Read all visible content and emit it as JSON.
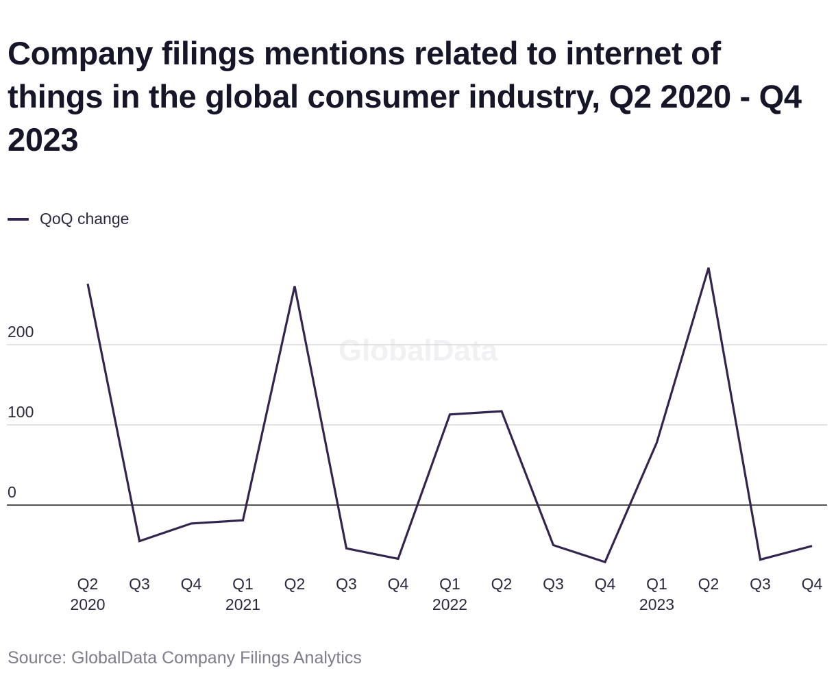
{
  "title": "Company filings mentions related to internet of things in the global consumer industry, Q2 2020 - Q4 2023",
  "legend": {
    "label": "QoQ change",
    "color": "#34254f"
  },
  "source": "Source: GlobalData Company Filings Analytics",
  "watermark": "GlobalData",
  "chart_data": {
    "type": "line",
    "title": "Company filings mentions related to internet of things in the global consumer industry, Q2 2020 - Q4 2023",
    "xlabel": "",
    "ylabel": "",
    "categories": [
      "Q2 2020",
      "Q3",
      "Q4",
      "Q1 2021",
      "Q2",
      "Q3",
      "Q4",
      "Q1 2022",
      "Q2",
      "Q3",
      "Q4",
      "Q1 2023",
      "Q2",
      "Q3",
      "Q4"
    ],
    "tick_labels": [
      [
        "Q2",
        "2020"
      ],
      [
        "Q3"
      ],
      [
        "Q4"
      ],
      [
        "Q1",
        "2021"
      ],
      [
        "Q2"
      ],
      [
        "Q3"
      ],
      [
        "Q4"
      ],
      [
        "Q1",
        "2022"
      ],
      [
        "Q2"
      ],
      [
        "Q3"
      ],
      [
        "Q4"
      ],
      [
        "Q1",
        "2023"
      ],
      [
        "Q2"
      ],
      [
        "Q3"
      ],
      [
        "Q4"
      ]
    ],
    "series": [
      {
        "name": "QoQ change",
        "values": [
          276,
          -45,
          -23,
          -19,
          273,
          -54,
          -67,
          113,
          117,
          -50,
          -71,
          78,
          296,
          -68,
          -51
        ]
      }
    ],
    "y_ticks": [
      0,
      100,
      200
    ],
    "ylim": [
      -80,
      300
    ],
    "grid": true,
    "legend_position": "top-left",
    "colors": {
      "line": "#34254f",
      "grid": "#d8d8d8",
      "zero_line": "#1a1a1a",
      "tick_text": "#2a2940"
    }
  }
}
